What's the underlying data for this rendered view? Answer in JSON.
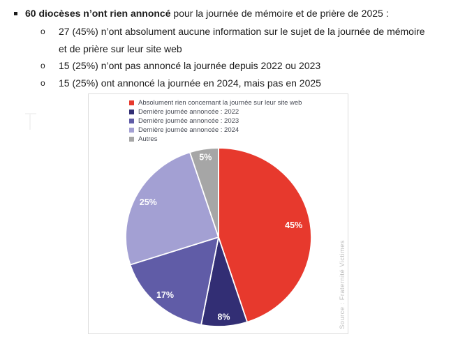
{
  "bullets": {
    "main": {
      "bold_text": "60 diocèses n’ont rien annoncé",
      "rest_text": " pour la journée de mémoire et de prière de 2025 :"
    },
    "sub_items": [
      {
        "marker": "o",
        "lines": [
          "27 (45%) n’ont absolument aucune information sur le sujet de la journée de mémoire",
          "et de prière sur leur site web"
        ]
      },
      {
        "marker": "o",
        "lines": [
          "15 (25%) n’ont pas annoncé la journée depuis 2022 ou 2023"
        ]
      },
      {
        "marker": "o",
        "lines": [
          "15 (25%) ont annoncé la journée en 2024, mais pas en 2025"
        ]
      }
    ]
  },
  "chart": {
    "source_note": "Source : Fraternité Victimes"
  },
  "chart_data": {
    "type": "pie",
    "title": "",
    "legend_position": "top-left",
    "direction": "clockwise",
    "start_angle_deg": 0,
    "data_label_color": "#FFFFFF",
    "slices": [
      {
        "label": "Absolument rien concernant la journée sur leur site web",
        "value": 45,
        "display": "45%",
        "color": "#E7392D"
      },
      {
        "label": "Dernière journée annoncée : 2022",
        "value": 8,
        "display": "8%",
        "color": "#322E74"
      },
      {
        "label": "Dernière journée annoncée : 2023",
        "value": 17,
        "display": "17%",
        "color": "#605CA7"
      },
      {
        "label": "Dernière journée annoncée : 2024",
        "value": 25,
        "display": "25%",
        "color": "#A3A0D3"
      },
      {
        "label": "Autres",
        "value": 5,
        "display": "5%",
        "color": "#A6A6A6"
      }
    ]
  }
}
